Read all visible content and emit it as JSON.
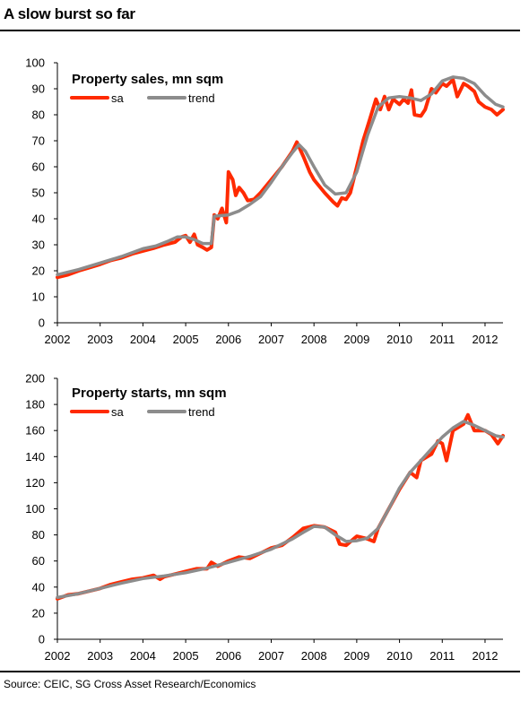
{
  "figure": {
    "title": "A slow burst so far",
    "source": "Source: CEIC, SG Cross Asset Research/Economics"
  },
  "chart_data": [
    {
      "type": "line",
      "title": "Property sales,  mn sqm",
      "ylim": [
        0,
        100
      ],
      "yticks": [
        0,
        10,
        20,
        30,
        40,
        50,
        60,
        70,
        80,
        90,
        100
      ],
      "xlim": [
        2002,
        2012.42
      ],
      "xticks": [
        2002,
        2003,
        2004,
        2005,
        2006,
        2007,
        2008,
        2009,
        2010,
        2011,
        2012
      ],
      "grid": false,
      "legend": "top-left",
      "series": [
        {
          "name": "sa",
          "color": "#ff2a00",
          "points": [
            [
              2002.0,
              17.5
            ],
            [
              2002.25,
              18.5
            ],
            [
              2002.5,
              20.0
            ],
            [
              2002.75,
              21.2
            ],
            [
              2003.0,
              22.5
            ],
            [
              2003.25,
              24.0
            ],
            [
              2003.5,
              25.0
            ],
            [
              2003.75,
              26.5
            ],
            [
              2004.0,
              27.6
            ],
            [
              2004.25,
              28.7
            ],
            [
              2004.5,
              30.0
            ],
            [
              2004.75,
              31.0
            ],
            [
              2004.9,
              33.0
            ],
            [
              2005.0,
              33.5
            ],
            [
              2005.1,
              31.0
            ],
            [
              2005.2,
              34.0
            ],
            [
              2005.28,
              30.0
            ],
            [
              2005.4,
              29.0
            ],
            [
              2005.5,
              28.0
            ],
            [
              2005.6,
              29.0
            ],
            [
              2005.67,
              41.5
            ],
            [
              2005.75,
              40.0
            ],
            [
              2005.85,
              44.0
            ],
            [
              2005.95,
              38.5
            ],
            [
              2006.0,
              58.0
            ],
            [
              2006.1,
              55.0
            ],
            [
              2006.17,
              49.0
            ],
            [
              2006.25,
              52.0
            ],
            [
              2006.35,
              50.0
            ],
            [
              2006.45,
              47.0
            ],
            [
              2006.6,
              47.5
            ],
            [
              2006.75,
              50.0
            ],
            [
              2007.0,
              55.0
            ],
            [
              2007.25,
              60.0
            ],
            [
              2007.5,
              66.0
            ],
            [
              2007.6,
              69.5
            ],
            [
              2007.75,
              64.0
            ],
            [
              2007.9,
              58.0
            ],
            [
              2008.0,
              55.0
            ],
            [
              2008.25,
              50.0
            ],
            [
              2008.45,
              46.5
            ],
            [
              2008.55,
              45.0
            ],
            [
              2008.65,
              48.0
            ],
            [
              2008.75,
              47.5
            ],
            [
              2008.85,
              50.0
            ],
            [
              2009.0,
              60.0
            ],
            [
              2009.15,
              70.0
            ],
            [
              2009.3,
              78.0
            ],
            [
              2009.45,
              86.0
            ],
            [
              2009.55,
              82.0
            ],
            [
              2009.65,
              87.0
            ],
            [
              2009.75,
              82.0
            ],
            [
              2009.85,
              86.0
            ],
            [
              2010.0,
              84.0
            ],
            [
              2010.1,
              86.0
            ],
            [
              2010.2,
              84.5
            ],
            [
              2010.28,
              89.5
            ],
            [
              2010.35,
              80.0
            ],
            [
              2010.5,
              79.5
            ],
            [
              2010.6,
              82.0
            ],
            [
              2010.75,
              90.0
            ],
            [
              2010.85,
              88.5
            ],
            [
              2011.0,
              92.0
            ],
            [
              2011.1,
              91.0
            ],
            [
              2011.25,
              93.5
            ],
            [
              2011.35,
              87.0
            ],
            [
              2011.5,
              92.0
            ],
            [
              2011.6,
              91.0
            ],
            [
              2011.75,
              89.0
            ],
            [
              2011.85,
              85.0
            ],
            [
              2012.0,
              83.0
            ],
            [
              2012.15,
              82.0
            ],
            [
              2012.28,
              80.0
            ],
            [
              2012.42,
              82.0
            ]
          ]
        },
        {
          "name": "trend",
          "color": "#8c8c8c",
          "points": [
            [
              2002.0,
              18.5
            ],
            [
              2002.5,
              20.5
            ],
            [
              2003.0,
              23.0
            ],
            [
              2003.5,
              25.5
            ],
            [
              2004.0,
              28.5
            ],
            [
              2004.3,
              29.5
            ],
            [
              2004.6,
              31.5
            ],
            [
              2004.8,
              33.0
            ],
            [
              2005.0,
              33.0
            ],
            [
              2005.2,
              32.0
            ],
            [
              2005.4,
              30.5
            ],
            [
              2005.6,
              30.5
            ],
            [
              2005.67,
              41.0
            ],
            [
              2006.0,
              41.5
            ],
            [
              2006.25,
              43.0
            ],
            [
              2006.5,
              45.5
            ],
            [
              2006.75,
              48.5
            ],
            [
              2007.0,
              54.0
            ],
            [
              2007.25,
              60.0
            ],
            [
              2007.5,
              65.5
            ],
            [
              2007.65,
              68.5
            ],
            [
              2007.8,
              66.0
            ],
            [
              2008.0,
              60.0
            ],
            [
              2008.25,
              53.0
            ],
            [
              2008.5,
              49.5
            ],
            [
              2008.75,
              50.0
            ],
            [
              2009.0,
              58.0
            ],
            [
              2009.25,
              72.0
            ],
            [
              2009.5,
              83.0
            ],
            [
              2009.75,
              86.5
            ],
            [
              2010.0,
              87.0
            ],
            [
              2010.25,
              86.5
            ],
            [
              2010.5,
              85.5
            ],
            [
              2010.75,
              88.0
            ],
            [
              2011.0,
              93.0
            ],
            [
              2011.25,
              94.5
            ],
            [
              2011.5,
              94.0
            ],
            [
              2011.75,
              92.0
            ],
            [
              2012.0,
              87.5
            ],
            [
              2012.25,
              84.0
            ],
            [
              2012.42,
              83.0
            ]
          ]
        }
      ]
    },
    {
      "type": "line",
      "title": "Property starts,  mn sqm",
      "ylim": [
        0,
        200
      ],
      "yticks": [
        0,
        20,
        40,
        60,
        80,
        100,
        120,
        140,
        160,
        180,
        200
      ],
      "xlim": [
        2002,
        2012.42
      ],
      "xticks": [
        2002,
        2003,
        2004,
        2005,
        2006,
        2007,
        2008,
        2009,
        2010,
        2011,
        2012
      ],
      "grid": false,
      "legend": "top-left",
      "series": [
        {
          "name": "sa",
          "color": "#ff2a00",
          "points": [
            [
              2002.0,
              31.0
            ],
            [
              2002.25,
              34.0
            ],
            [
              2002.5,
              35.0
            ],
            [
              2002.75,
              37.0
            ],
            [
              2003.0,
              39.0
            ],
            [
              2003.25,
              42.0
            ],
            [
              2003.5,
              44.0
            ],
            [
              2003.75,
              46.0
            ],
            [
              2004.0,
              47.0
            ],
            [
              2004.25,
              49.0
            ],
            [
              2004.4,
              46.0
            ],
            [
              2004.5,
              48.0
            ],
            [
              2004.75,
              50.0
            ],
            [
              2005.0,
              52.0
            ],
            [
              2005.25,
              54.0
            ],
            [
              2005.5,
              54.0
            ],
            [
              2005.6,
              59.0
            ],
            [
              2005.75,
              56.0
            ],
            [
              2006.0,
              60.0
            ],
            [
              2006.25,
              63.0
            ],
            [
              2006.5,
              62.0
            ],
            [
              2006.75,
              66.0
            ],
            [
              2007.0,
              70.0
            ],
            [
              2007.25,
              72.0
            ],
            [
              2007.5,
              78.0
            ],
            [
              2007.75,
              85.0
            ],
            [
              2008.0,
              87.0
            ],
            [
              2008.25,
              86.0
            ],
            [
              2008.5,
              82.0
            ],
            [
              2008.6,
              73.0
            ],
            [
              2008.75,
              72.0
            ],
            [
              2009.0,
              79.0
            ],
            [
              2009.25,
              77.0
            ],
            [
              2009.4,
              75.0
            ],
            [
              2009.5,
              85.0
            ],
            [
              2009.75,
              100.0
            ],
            [
              2010.0,
              115.0
            ],
            [
              2010.25,
              128.0
            ],
            [
              2010.4,
              124.0
            ],
            [
              2010.5,
              137.0
            ],
            [
              2010.75,
              142.0
            ],
            [
              2010.9,
              152.0
            ],
            [
              2011.0,
              150.0
            ],
            [
              2011.1,
              137.0
            ],
            [
              2011.25,
              160.0
            ],
            [
              2011.5,
              165.0
            ],
            [
              2011.6,
              172.0
            ],
            [
              2011.75,
              160.0
            ],
            [
              2012.0,
              160.0
            ],
            [
              2012.15,
              157.0
            ],
            [
              2012.3,
              150.0
            ],
            [
              2012.42,
              156.0
            ]
          ]
        },
        {
          "name": "trend",
          "color": "#8c8c8c",
          "points": [
            [
              2002.0,
              32.0
            ],
            [
              2002.5,
              35.0
            ],
            [
              2003.0,
              39.0
            ],
            [
              2003.5,
              43.0
            ],
            [
              2004.0,
              46.5
            ],
            [
              2004.5,
              48.5
            ],
            [
              2005.0,
              51.0
            ],
            [
              2005.5,
              54.5
            ],
            [
              2006.0,
              59.0
            ],
            [
              2006.5,
              63.5
            ],
            [
              2007.0,
              69.0
            ],
            [
              2007.5,
              77.0
            ],
            [
              2007.75,
              82.0
            ],
            [
              2008.0,
              86.5
            ],
            [
              2008.25,
              86.0
            ],
            [
              2008.5,
              80.0
            ],
            [
              2008.75,
              75.0
            ],
            [
              2009.0,
              75.5
            ],
            [
              2009.25,
              77.5
            ],
            [
              2009.5,
              85.0
            ],
            [
              2009.75,
              100.0
            ],
            [
              2010.0,
              116.0
            ],
            [
              2010.25,
              128.0
            ],
            [
              2010.5,
              137.0
            ],
            [
              2010.75,
              146.0
            ],
            [
              2011.0,
              155.0
            ],
            [
              2011.25,
              162.0
            ],
            [
              2011.5,
              167.0
            ],
            [
              2011.75,
              164.0
            ],
            [
              2012.0,
              160.0
            ],
            [
              2012.25,
              156.0
            ],
            [
              2012.42,
              155.0
            ]
          ]
        }
      ]
    }
  ]
}
